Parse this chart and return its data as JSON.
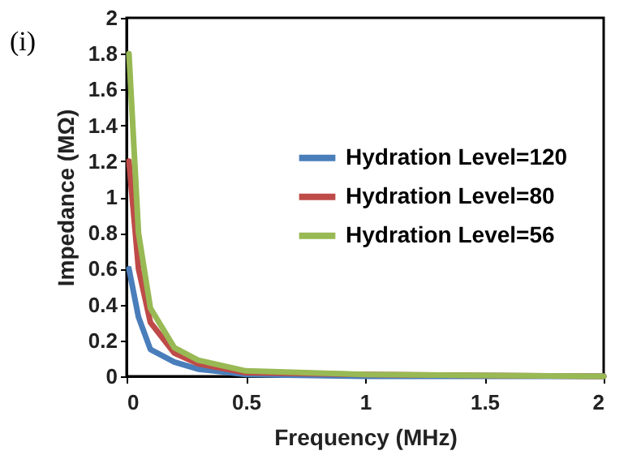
{
  "chart_data": {
    "type": "line",
    "xlabel": "Frequency (MHz)",
    "ylabel": "Impedance (MΩ)",
    "annotations": [
      "(i)"
    ],
    "xlim": [
      0,
      2
    ],
    "xticks": [
      0,
      0.5,
      1,
      1.5,
      2
    ],
    "ylim": [
      0,
      2
    ],
    "yticks": [
      0,
      0.2,
      0.4,
      0.6,
      0.8,
      1,
      1.2,
      1.4,
      1.6,
      1.8,
      2
    ],
    "grid": false,
    "legend": "right",
    "marker": "none",
    "line_style": "solid",
    "series": [
      {
        "name": "Hydration Level=120",
        "color": "#4a7ebb",
        "x": [
          0.01,
          0.05,
          0.1,
          0.2,
          0.3,
          0.5,
          1,
          2
        ],
        "values": [
          0.6,
          0.33,
          0.15,
          0.08,
          0.04,
          0.01,
          0,
          0
        ]
      },
      {
        "name": "Hydration Level=80",
        "color": "#be4b48",
        "x": [
          0.01,
          0.05,
          0.1,
          0.2,
          0.3,
          0.5,
          1,
          2
        ],
        "values": [
          1.2,
          0.6,
          0.3,
          0.13,
          0.07,
          0.02,
          0.01,
          0
        ]
      },
      {
        "name": "Hydration Level=56",
        "color": "#98b954",
        "x": [
          0.01,
          0.05,
          0.1,
          0.2,
          0.3,
          0.5,
          1,
          2
        ],
        "values": [
          1.8,
          0.8,
          0.38,
          0.16,
          0.09,
          0.03,
          0.01,
          0
        ]
      }
    ]
  }
}
